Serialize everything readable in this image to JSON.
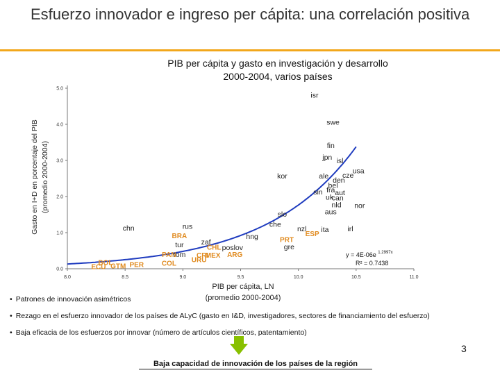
{
  "slide": {
    "title": "Esfuerzo innovador e ingreso per cápita: una correlación positiva",
    "page_number": "3",
    "bullets": [
      "Patrones de innovación asimétricos",
      "Rezago en el esfuerzo innovador de los países de ALyC (gasto en I&D, investigadores, sectores de financiamiento del esfuerzo)",
      "Baja eficacia de los esfuerzos por innovar (número de artículos científicos, patentamiento)"
    ],
    "conclusion": "Baja capacidad de innovación de los países de la región"
  },
  "chart_data": {
    "type": "scatter",
    "title": "PIB per cápita y gasto en investigación y desarrollo",
    "subtitle": "2000-2004, varios países",
    "xlabel": "PIB per cápita, LN",
    "xlabel2": "(promedio 2000-2004)",
    "ylabel": "Gasto en I+D en porcentaje del PIB",
    "ylabel2": "(promedio 2000-2004)",
    "xlim": [
      8.0,
      11.0
    ],
    "ylim": [
      0.0,
      5.0
    ],
    "xticks": [
      "8.0",
      "8.5",
      "9.0",
      "9.5",
      "10.0",
      "10.5",
      "11.0"
    ],
    "yticks": [
      "0.0",
      "1.0",
      "2.0",
      "3.0",
      "4.0",
      "5.0"
    ],
    "grid": false,
    "equation": "y = 4E-06e",
    "equation_exponent": "1.2997x",
    "r_squared": "R² = 0.7438",
    "colors": {
      "curve": "#1f3cbf",
      "highlight": "#e08a1e",
      "default": "#222222",
      "axis": "#777777"
    },
    "points": [
      {
        "label": "isr",
        "x": 10.14,
        "y": 4.8,
        "highlight": false
      },
      {
        "label": "swe",
        "x": 10.3,
        "y": 4.05,
        "highlight": false
      },
      {
        "label": "fin",
        "x": 10.28,
        "y": 3.4,
        "highlight": false
      },
      {
        "label": "jpn",
        "x": 10.25,
        "y": 3.08,
        "highlight": false
      },
      {
        "label": "isl",
        "x": 10.36,
        "y": 2.98,
        "highlight": false
      },
      {
        "label": "usa",
        "x": 10.52,
        "y": 2.7,
        "highlight": false
      },
      {
        "label": "cze",
        "x": 10.43,
        "y": 2.58,
        "highlight": false
      },
      {
        "label": "ale",
        "x": 10.22,
        "y": 2.56,
        "highlight": false
      },
      {
        "label": "den",
        "x": 10.35,
        "y": 2.44,
        "highlight": false
      },
      {
        "label": "kor",
        "x": 9.86,
        "y": 2.56,
        "highlight": false
      },
      {
        "label": "bel",
        "x": 10.3,
        "y": 2.3,
        "highlight": false
      },
      {
        "label": "sin",
        "x": 10.17,
        "y": 2.12,
        "highlight": false
      },
      {
        "label": "fra",
        "x": 10.28,
        "y": 2.17,
        "highlight": false
      },
      {
        "label": "aut",
        "x": 10.36,
        "y": 2.1,
        "highlight": false
      },
      {
        "label": "uk",
        "x": 10.27,
        "y": 1.97,
        "highlight": false
      },
      {
        "label": "can",
        "x": 10.34,
        "y": 1.95,
        "highlight": false
      },
      {
        "label": "nld",
        "x": 10.33,
        "y": 1.76,
        "highlight": false
      },
      {
        "label": "nor",
        "x": 10.53,
        "y": 1.74,
        "highlight": false
      },
      {
        "label": "aus",
        "x": 10.28,
        "y": 1.57,
        "highlight": false
      },
      {
        "label": "slo",
        "x": 9.86,
        "y": 1.5,
        "highlight": false
      },
      {
        "label": "che",
        "x": 9.8,
        "y": 1.22,
        "highlight": false
      },
      {
        "label": "nzl",
        "x": 10.03,
        "y": 1.1,
        "highlight": false
      },
      {
        "label": "ita",
        "x": 10.23,
        "y": 1.08,
        "highlight": false
      },
      {
        "label": "irl",
        "x": 10.45,
        "y": 1.1,
        "highlight": false
      },
      {
        "label": "ESP",
        "x": 10.12,
        "y": 0.96,
        "highlight": true
      },
      {
        "label": "PRT",
        "x": 9.9,
        "y": 0.8,
        "highlight": true
      },
      {
        "label": "hng",
        "x": 9.6,
        "y": 0.88,
        "highlight": false
      },
      {
        "label": "gre",
        "x": 9.92,
        "y": 0.6,
        "highlight": false
      },
      {
        "label": "chn",
        "x": 8.53,
        "y": 1.12,
        "highlight": false
      },
      {
        "label": "rus",
        "x": 9.04,
        "y": 1.16,
        "highlight": false
      },
      {
        "label": "BRA",
        "x": 8.97,
        "y": 0.9,
        "highlight": true
      },
      {
        "label": "tur",
        "x": 8.97,
        "y": 0.65,
        "highlight": false
      },
      {
        "label": "zaf",
        "x": 9.2,
        "y": 0.73,
        "highlight": false
      },
      {
        "label": "CHL",
        "x": 9.27,
        "y": 0.59,
        "highlight": true
      },
      {
        "label": "poslov",
        "x": 9.43,
        "y": 0.58,
        "highlight": false
      },
      {
        "label": "PAN",
        "x": 8.88,
        "y": 0.38,
        "highlight": true
      },
      {
        "label": "rom",
        "x": 8.97,
        "y": 0.38,
        "highlight": false
      },
      {
        "label": "CRI",
        "x": 9.17,
        "y": 0.37,
        "highlight": true
      },
      {
        "label": "MEX",
        "x": 9.26,
        "y": 0.37,
        "highlight": true
      },
      {
        "label": "ARG",
        "x": 9.45,
        "y": 0.38,
        "highlight": true
      },
      {
        "label": "URU",
        "x": 9.14,
        "y": 0.24,
        "highlight": true
      },
      {
        "label": "COL",
        "x": 8.88,
        "y": 0.14,
        "highlight": true
      },
      {
        "label": "PER",
        "x": 8.6,
        "y": 0.11,
        "highlight": true
      },
      {
        "label": "BOL",
        "x": 8.33,
        "y": 0.16,
        "highlight": true
      },
      {
        "label": "ECU",
        "x": 8.27,
        "y": 0.05,
        "highlight": true
      },
      {
        "label": "GTM",
        "x": 8.44,
        "y": 0.07,
        "highlight": true
      }
    ]
  }
}
